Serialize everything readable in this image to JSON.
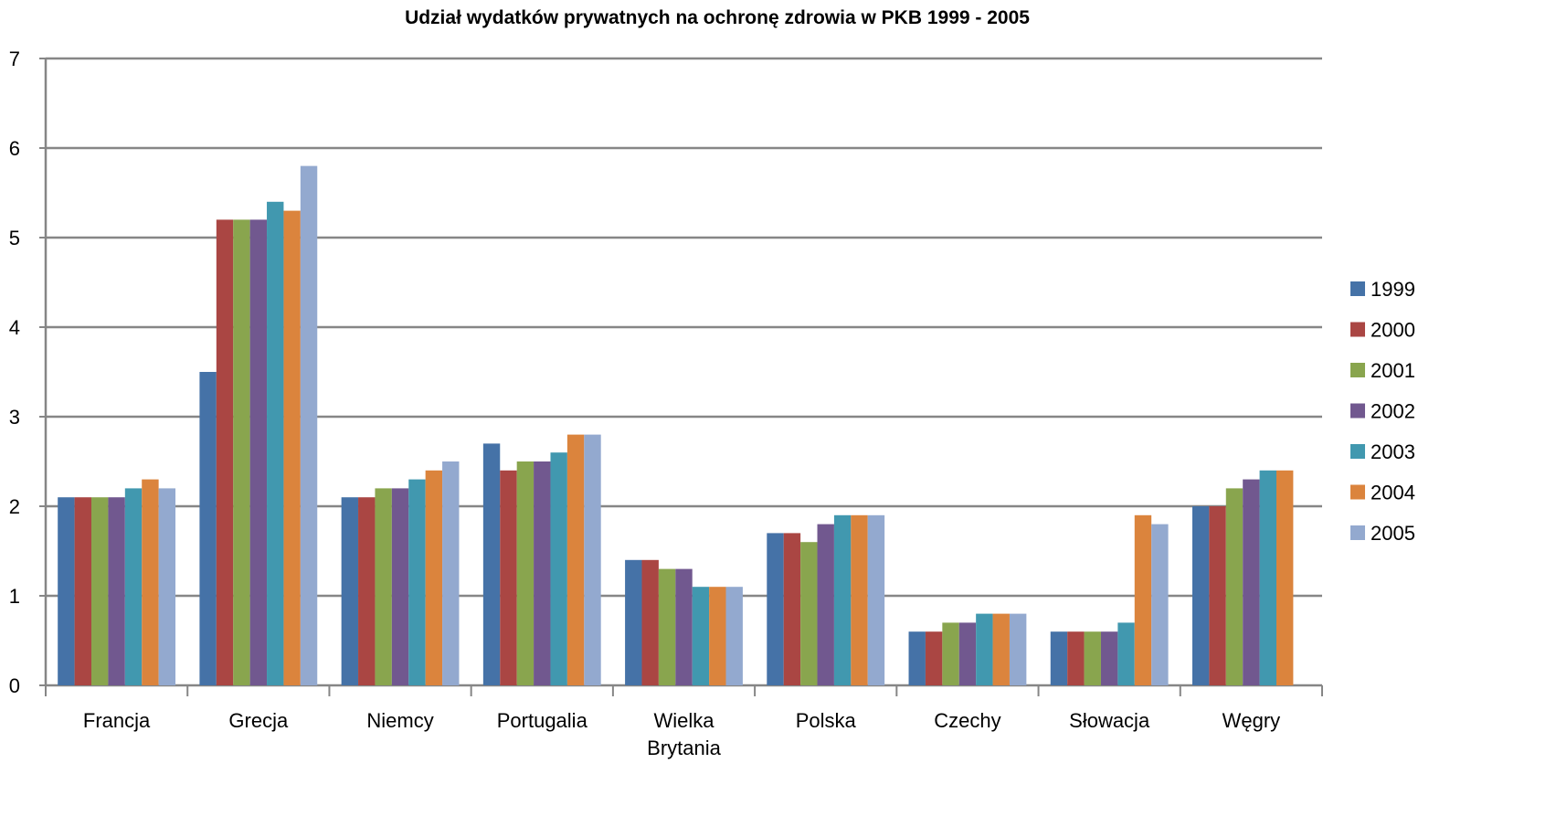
{
  "chart_data": {
    "type": "bar",
    "title": "Udział wydatków prywatnych na ochronę zdrowia w PKB 1999 - 2005",
    "xlabel": "",
    "ylabel": "",
    "ylim": [
      0,
      7
    ],
    "yticks": [
      "0",
      "1",
      "2",
      "3",
      "4",
      "5",
      "6",
      "7"
    ],
    "grid": true,
    "legend_position": "right",
    "categories": [
      [
        "Francja"
      ],
      [
        "Grecja"
      ],
      [
        "Niemcy"
      ],
      [
        "Portugalia"
      ],
      [
        "Wielka",
        "Brytania"
      ],
      [
        "Polska"
      ],
      [
        "Czechy"
      ],
      [
        "Słowacja"
      ],
      [
        "Węgry"
      ]
    ],
    "series": [
      {
        "name": "1999",
        "color": "#4572A7",
        "values": [
          2.1,
          3.5,
          2.1,
          2.7,
          1.4,
          1.7,
          0.6,
          0.6,
          2.0
        ]
      },
      {
        "name": "2000",
        "color": "#AA4643",
        "values": [
          2.1,
          5.2,
          2.1,
          2.4,
          1.4,
          1.7,
          0.6,
          0.6,
          2.0
        ]
      },
      {
        "name": "2001",
        "color": "#89A54E",
        "values": [
          2.1,
          5.2,
          2.2,
          2.5,
          1.3,
          1.6,
          0.7,
          0.6,
          2.2
        ]
      },
      {
        "name": "2002",
        "color": "#71588F",
        "values": [
          2.1,
          5.2,
          2.2,
          2.5,
          1.3,
          1.8,
          0.7,
          0.6,
          2.3
        ]
      },
      {
        "name": "2003",
        "color": "#4198AF",
        "values": [
          2.2,
          5.4,
          2.3,
          2.6,
          1.1,
          1.9,
          0.8,
          0.7,
          2.4
        ]
      },
      {
        "name": "2004",
        "color": "#DB843D",
        "values": [
          2.3,
          5.3,
          2.4,
          2.8,
          1.1,
          1.9,
          0.8,
          1.9,
          2.4
        ]
      },
      {
        "name": "2005",
        "color": "#93A9CF",
        "values": [
          2.2,
          5.8,
          2.5,
          2.8,
          1.1,
          1.9,
          0.8,
          1.8,
          null
        ]
      }
    ]
  }
}
